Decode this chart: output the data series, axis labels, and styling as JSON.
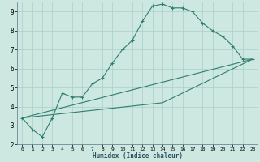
{
  "xlabel": "Humidex (Indice chaleur)",
  "ylabel": "",
  "bg_color": "#cce8e0",
  "grid_color": "#aacfc8",
  "line_color": "#2e7d6e",
  "xlim": [
    -0.5,
    23.5
  ],
  "ylim": [
    2,
    9.5
  ],
  "xticks": [
    0,
    1,
    2,
    3,
    4,
    5,
    6,
    7,
    8,
    9,
    10,
    11,
    12,
    13,
    14,
    15,
    16,
    17,
    18,
    19,
    20,
    21,
    22,
    23
  ],
  "yticks": [
    2,
    3,
    4,
    5,
    6,
    7,
    8,
    9
  ],
  "line1_x": [
    0,
    1,
    2,
    3,
    4,
    5,
    6,
    7,
    8,
    9,
    10,
    11,
    12,
    13,
    14,
    15,
    16,
    17,
    18,
    19,
    20,
    21,
    22,
    23
  ],
  "line1_y": [
    3.4,
    2.8,
    2.4,
    3.4,
    4.7,
    4.5,
    4.5,
    5.2,
    5.5,
    6.3,
    7.0,
    7.5,
    8.5,
    9.3,
    9.4,
    9.2,
    9.2,
    9.0,
    8.4,
    8.0,
    7.7,
    7.2,
    6.5,
    6.5
  ],
  "line2_x": [
    0,
    23
  ],
  "line2_y": [
    3.4,
    6.5
  ],
  "line3_x": [
    0,
    14,
    23
  ],
  "line3_y": [
    3.4,
    4.2,
    6.5
  ]
}
